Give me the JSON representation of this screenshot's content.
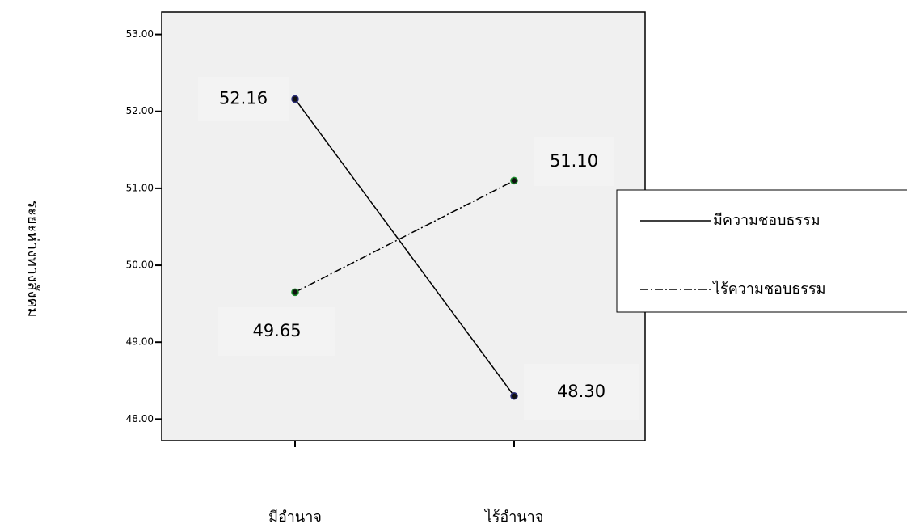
{
  "chart_data": {
    "type": "line",
    "ylabel": "ระยะห่างทางสังคม",
    "categories": [
      "มีอำนาจ",
      "ไร้อำนาจ"
    ],
    "series": [
      {
        "name": "มีความชอบธรรม",
        "color": "#000000",
        "marker_color": "#2b2d7a",
        "linestyle": "solid",
        "values": [
          52.16,
          48.3
        ],
        "value_labels": [
          "52.16",
          "48.30"
        ]
      },
      {
        "name": "ไร้ความชอบธรรม",
        "color": "#000000",
        "marker_color": "#1a8a2a",
        "linestyle": "dashdot",
        "values": [
          49.65,
          51.1
        ],
        "value_labels": [
          "49.65",
          "51.10"
        ]
      }
    ],
    "ylim": [
      47.72,
      53.29
    ],
    "yticks": [
      {
        "value": 48,
        "label": "48.00"
      },
      {
        "value": 49,
        "label": "49.00"
      },
      {
        "value": 50,
        "label": "50.00"
      },
      {
        "value": 51,
        "label": "51.00"
      },
      {
        "value": 52,
        "label": "52.00"
      },
      {
        "value": 53,
        "label": "53.00"
      }
    ],
    "legend": "right"
  }
}
